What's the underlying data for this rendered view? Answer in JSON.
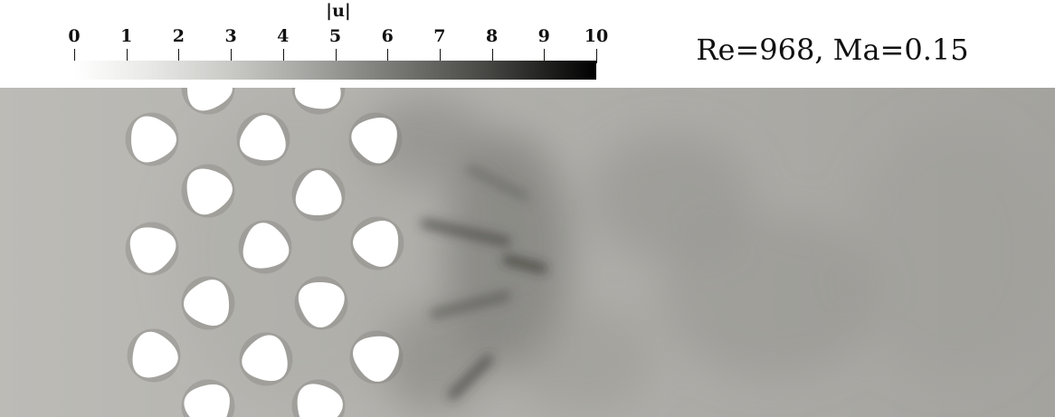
{
  "figure": {
    "colorbar": {
      "title": "|u|",
      "tick_labels": [
        "0",
        "1",
        "2",
        "3",
        "4",
        "5",
        "6",
        "7",
        "8",
        "9",
        "10"
      ],
      "range": [
        0,
        10
      ],
      "colormap": "white-to-black grayscale",
      "colors": [
        "#ffffff",
        "#000000"
      ]
    },
    "annotation": "Re=968, Ma=0.15",
    "field": {
      "background_color": "#b9b8b3",
      "wake_color": "#8f8e89",
      "obstacle_color": "#ffffff"
    }
  }
}
